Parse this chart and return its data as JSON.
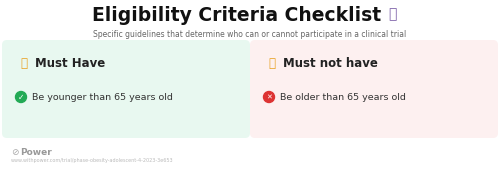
{
  "title": "Eligibility Criteria Checklist",
  "subtitle": "Specific guidelines that determine who can or cannot participate in a clinical trial",
  "left_box": {
    "title": "  Must Have",
    "bg_color": "#e8f8f0",
    "title_color": "#222222",
    "item_text": "Be younger than 65 years old",
    "item_dot_color": "#22aa55"
  },
  "right_box": {
    "title": "  Must not have",
    "bg_color": "#fdf0f0",
    "title_color": "#222222",
    "item_text": "Be older than 65 years old",
    "item_dot_color": "#dd3333"
  },
  "footer_logo": "Power",
  "footer_url": "www.withpower.com/trial/phase-obesity-adolescent-4-2023-3e653",
  "bg_color": "#ffffff",
  "title_color": "#111111",
  "subtitle_color": "#666666",
  "thumb_up_color": "#e8a020",
  "thumb_down_color": "#e8a020",
  "clipboard_color": "#7b5ea7",
  "footer_color": "#999999",
  "url_color": "#bbbbbb"
}
